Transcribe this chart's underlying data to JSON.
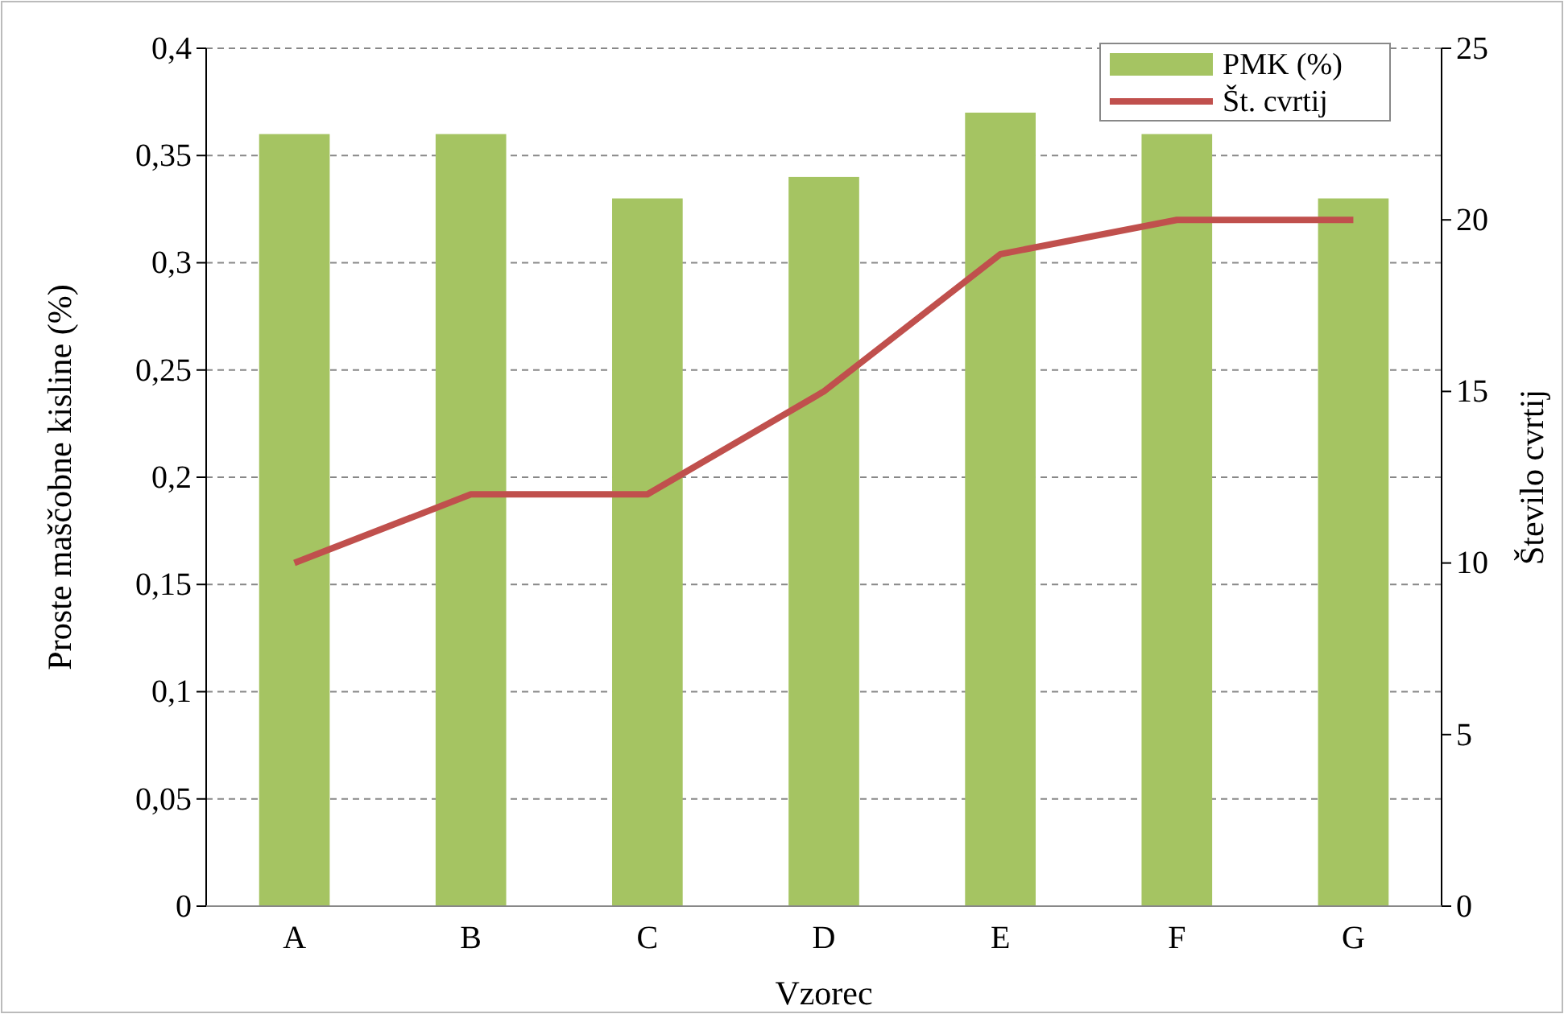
{
  "chart_data": {
    "type": "bar",
    "xlabel": "Vzorec",
    "ylabel": "Proste maščobne kisline (%)",
    "y2label": "Število cvrtij",
    "categories": [
      "A",
      "B",
      "C",
      "D",
      "E",
      "F",
      "G"
    ],
    "series": [
      {
        "name": "PMK (%)",
        "color": "#a5c462",
        "values": [
          0.36,
          0.36,
          0.33,
          0.34,
          0.37,
          0.36,
          0.33
        ]
      },
      {
        "name": "Št. cvrtij",
        "type": "line",
        "axis": "y2",
        "color": "#c0504d",
        "values": [
          10,
          12,
          12,
          15,
          19,
          20,
          20
        ]
      }
    ],
    "ylim": [
      0,
      0.4
    ],
    "yticks": [
      0,
      {
        "value": 0.05,
        "label": "0,05"
      },
      {
        "value": 0.1,
        "label": "0,1"
      },
      {
        "value": 0.15,
        "label": "0,15"
      },
      {
        "value": 0.2,
        "label": "0,2"
      },
      {
        "value": 0.25,
        "label": "0,25"
      },
      {
        "value": 0.3,
        "label": "0,3"
      },
      {
        "value": 0.35,
        "label": "0,35"
      },
      {
        "value": 0.4,
        "label": "0,4"
      }
    ],
    "y2lim": [
      0,
      25
    ],
    "y2ticks": [
      0,
      5,
      10,
      15,
      20,
      25
    ],
    "grid": "y",
    "legend": "top right",
    "marker": "none",
    "line_style": "solid"
  }
}
